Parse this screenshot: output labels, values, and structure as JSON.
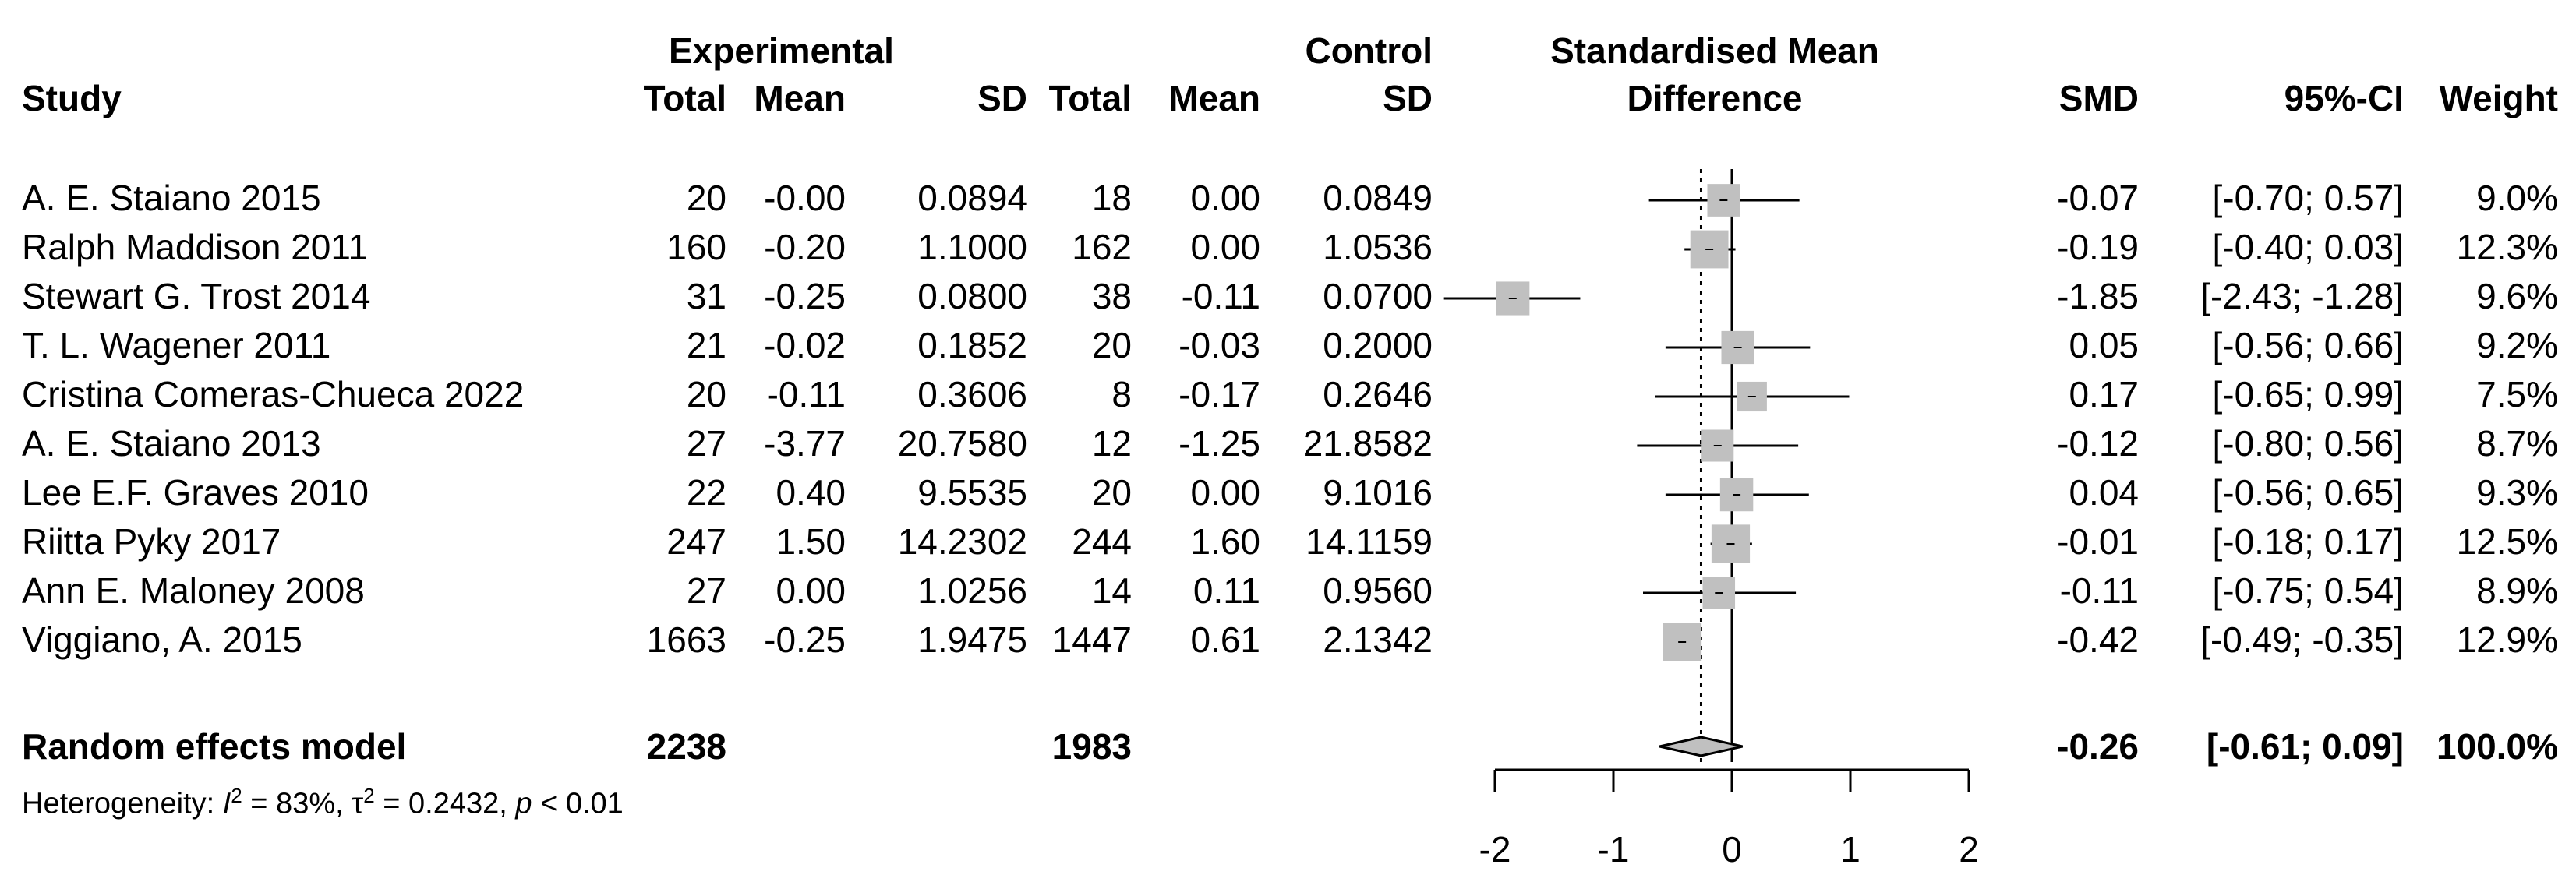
{
  "headers": {
    "study": "Study",
    "experimental": "Experimental",
    "control": "Control",
    "total": "Total",
    "mean": "Mean",
    "sd": "SD",
    "smd_line1": "Standardised Mean",
    "smd_line2": "Difference",
    "smd": "SMD",
    "ci": "95%-CI",
    "weight": "Weight"
  },
  "studies": [
    {
      "name": "A. E. Staiano 2015",
      "e_total": "20",
      "e_mean": "-0.00",
      "e_sd": "0.0894",
      "c_total": "18",
      "c_mean": "0.00",
      "c_sd": "0.0849",
      "smd": "-0.07",
      "ci": "[-0.70; 0.57]",
      "weight": "9.0%"
    },
    {
      "name": "Ralph Maddison 2011",
      "e_total": "160",
      "e_mean": "-0.20",
      "e_sd": "1.1000",
      "c_total": "162",
      "c_mean": "0.00",
      "c_sd": "1.0536",
      "smd": "-0.19",
      "ci": "[-0.40; 0.03]",
      "weight": "12.3%"
    },
    {
      "name": "Stewart G. Trost 2014",
      "e_total": "31",
      "e_mean": "-0.25",
      "e_sd": "0.0800",
      "c_total": "38",
      "c_mean": "-0.11",
      "c_sd": "0.0700",
      "smd": "-1.85",
      "ci": "[-2.43; -1.28]",
      "weight": "9.6%"
    },
    {
      "name": "T. L. Wagener 2011",
      "e_total": "21",
      "e_mean": "-0.02",
      "e_sd": "0.1852",
      "c_total": "20",
      "c_mean": "-0.03",
      "c_sd": "0.2000",
      "smd": "0.05",
      "ci": "[-0.56; 0.66]",
      "weight": "9.2%"
    },
    {
      "name": "Cristina Comeras-Chueca 2022",
      "e_total": "20",
      "e_mean": "-0.11",
      "e_sd": "0.3606",
      "c_total": "8",
      "c_mean": "-0.17",
      "c_sd": "0.2646",
      "smd": "0.17",
      "ci": "[-0.65; 0.99]",
      "weight": "7.5%"
    },
    {
      "name": "A. E. Staiano 2013",
      "e_total": "27",
      "e_mean": "-3.77",
      "e_sd": "20.7580",
      "c_total": "12",
      "c_mean": "-1.25",
      "c_sd": "21.8582",
      "smd": "-0.12",
      "ci": "[-0.80; 0.56]",
      "weight": "8.7%"
    },
    {
      "name": "Lee E.F. Graves 2010",
      "e_total": "22",
      "e_mean": "0.40",
      "e_sd": "9.5535",
      "c_total": "20",
      "c_mean": "0.00",
      "c_sd": "9.1016",
      "smd": "0.04",
      "ci": "[-0.56; 0.65]",
      "weight": "9.3%"
    },
    {
      "name": "Riitta Pyky 2017",
      "e_total": "247",
      "e_mean": "1.50",
      "e_sd": "14.2302",
      "c_total": "244",
      "c_mean": "1.60",
      "c_sd": "14.1159",
      "smd": "-0.01",
      "ci": "[-0.18; 0.17]",
      "weight": "12.5%"
    },
    {
      "name": "Ann E. Maloney 2008",
      "e_total": "27",
      "e_mean": "0.00",
      "e_sd": "1.0256",
      "c_total": "14",
      "c_mean": "0.11",
      "c_sd": "0.9560",
      "smd": "-0.11",
      "ci": "[-0.75; 0.54]",
      "weight": "8.9%"
    },
    {
      "name": "Viggiano, A. 2015",
      "e_total": "1663",
      "e_mean": "-0.25",
      "e_sd": "1.9475",
      "c_total": "1447",
      "c_mean": "0.61",
      "c_sd": "2.1342",
      "smd": "-0.42",
      "ci": "[-0.49; -0.35]",
      "weight": "12.9%"
    }
  ],
  "summary": {
    "label": "Random effects model",
    "e_total": "2238",
    "c_total": "1983",
    "smd": "-0.26",
    "ci": "[-0.61; 0.09]",
    "weight": "100.0%"
  },
  "heterogeneity": {
    "prefix": "Heterogeneity: ",
    "i2_symbol": "I",
    "i2_exp": "2",
    "i2_value": " = 83%, ",
    "tau_symbol": "τ",
    "tau_exp": "2",
    "tau_value": " = 0.2432, ",
    "p_symbol": "p",
    "p_value": " < 0.01"
  },
  "chart_data": {
    "type": "forest",
    "title": "Standardised Mean Difference",
    "x_ticks": [
      -2,
      -1,
      0,
      1,
      2
    ],
    "x_tick_labels": [
      "-2",
      "-1",
      "0",
      "1",
      "2"
    ],
    "xlim": [
      -2,
      2
    ],
    "reference_line": 0,
    "overall_line": -0.26,
    "studies": [
      {
        "name": "A. E. Staiano 2015",
        "smd": -0.07,
        "lower": -0.7,
        "upper": 0.57,
        "weight": 9.0
      },
      {
        "name": "Ralph Maddison 2011",
        "smd": -0.19,
        "lower": -0.4,
        "upper": 0.03,
        "weight": 12.3
      },
      {
        "name": "Stewart G. Trost 2014",
        "smd": -1.85,
        "lower": -2.43,
        "upper": -1.28,
        "weight": 9.6
      },
      {
        "name": "T. L. Wagener 2011",
        "smd": 0.05,
        "lower": -0.56,
        "upper": 0.66,
        "weight": 9.2
      },
      {
        "name": "Cristina Comeras-Chueca 2022",
        "smd": 0.17,
        "lower": -0.65,
        "upper": 0.99,
        "weight": 7.5
      },
      {
        "name": "A. E. Staiano 2013",
        "smd": -0.12,
        "lower": -0.8,
        "upper": 0.56,
        "weight": 8.7
      },
      {
        "name": "Lee E.F. Graves 2010",
        "smd": 0.04,
        "lower": -0.56,
        "upper": 0.65,
        "weight": 9.3
      },
      {
        "name": "Riitta Pyky 2017",
        "smd": -0.01,
        "lower": -0.18,
        "upper": 0.17,
        "weight": 12.5
      },
      {
        "name": "Ann E. Maloney 2008",
        "smd": -0.11,
        "lower": -0.75,
        "upper": 0.54,
        "weight": 8.9
      },
      {
        "name": "Viggiano, A. 2015",
        "smd": -0.42,
        "lower": -0.49,
        "upper": -0.35,
        "weight": 12.9
      }
    ],
    "overall": {
      "smd": -0.26,
      "lower": -0.61,
      "upper": 0.09
    },
    "colors": {
      "square": "#c0c0c0",
      "diamond": "#c0c0c0",
      "line": "#000000"
    }
  }
}
